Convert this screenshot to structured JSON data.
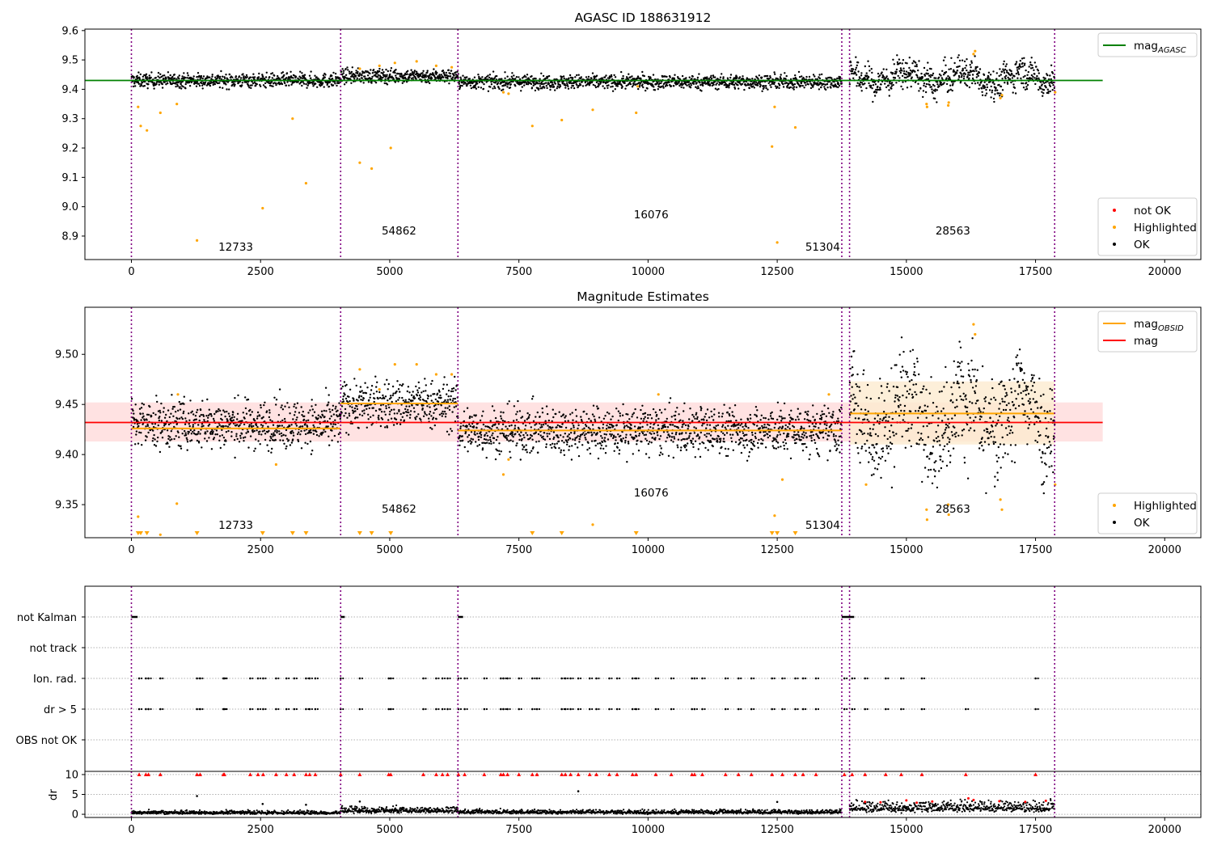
{
  "figure": {
    "background": "#ffffff",
    "colors": {
      "ok": "#000000",
      "highlighted": "#ffa500",
      "not_ok": "#ff0000",
      "mag_agasc_line": "#008000",
      "mag_obsid_line": "#ffa500",
      "mag_line": "#ff0000",
      "mag_band": "#ffd6d6",
      "obsid_band": "#fdebd0",
      "obsid_boundary": "#800080",
      "grid": "#b0b0b0"
    }
  },
  "chart_data": [
    {
      "type": "scatter",
      "title": "AGASC ID 188631912",
      "xlim": [
        -900,
        20700
      ],
      "ylim": [
        8.82,
        9.605
      ],
      "x_ticks": [
        0,
        2500,
        5000,
        7500,
        10000,
        12500,
        15000,
        17500,
        20000
      ],
      "x_tick_labels": [
        "0",
        "2500",
        "5000",
        "7500",
        "10000",
        "12500",
        "15000",
        "17500",
        "20000"
      ],
      "y_ticks": [
        8.9,
        9.0,
        9.1,
        9.2,
        9.3,
        9.4,
        9.5,
        9.6
      ],
      "y_tick_labels": [
        "8.9",
        "9.0",
        "9.1",
        "9.2",
        "9.3",
        "9.4",
        "9.5",
        "9.6"
      ],
      "obsid_boundaries": [
        0,
        4050,
        6320,
        13750,
        13900,
        17870
      ],
      "obsid_labels": [
        {
          "text": "12733",
          "x": 2020,
          "y": 8.85
        },
        {
          "text": "54862",
          "x": 5180,
          "y": 8.905
        },
        {
          "text": "16076",
          "x": 10060,
          "y": 8.96
        },
        {
          "text": "51304",
          "x": 13380,
          "y": 8.85
        },
        {
          "text": "28563",
          "x": 15900,
          "y": 8.905
        }
      ],
      "mag_agasc": {
        "value": 9.43,
        "x": [
          -900,
          18800
        ]
      },
      "segments": [
        {
          "x": [
            0,
            4050
          ],
          "center": 9.43,
          "spread": 0.012
        },
        {
          "x": [
            4050,
            6320
          ],
          "center": 9.445,
          "spread": 0.012
        },
        {
          "x": [
            6320,
            13750
          ],
          "center": 9.425,
          "spread": 0.012
        },
        {
          "x": [
            13900,
            17870
          ],
          "center": 9.44,
          "spread": 0.025
        }
      ],
      "highlighted_points": [
        [
          130,
          9.34
        ],
        [
          180,
          9.275
        ],
        [
          300,
          9.26
        ],
        [
          560,
          9.32
        ],
        [
          880,
          9.35
        ],
        [
          1270,
          8.885
        ],
        [
          2540,
          8.995
        ],
        [
          3120,
          9.3
        ],
        [
          3380,
          9.08
        ],
        [
          4420,
          9.15
        ],
        [
          4650,
          9.13
        ],
        [
          5020,
          9.2
        ],
        [
          7760,
          9.275
        ],
        [
          8330,
          9.295
        ],
        [
          8930,
          9.33
        ],
        [
          9770,
          9.32
        ],
        [
          12400,
          9.205
        ],
        [
          12500,
          8.878
        ],
        [
          12850,
          9.27
        ],
        [
          12450,
          9.34
        ],
        [
          15390,
          9.35
        ],
        [
          15400,
          9.34
        ],
        [
          15810,
          9.345
        ],
        [
          15820,
          9.355
        ],
        [
          16820,
          9.37
        ],
        [
          16850,
          9.38
        ],
        [
          16300,
          9.52
        ],
        [
          16330,
          9.53
        ],
        [
          17880,
          9.39
        ],
        [
          4420,
          9.47
        ],
        [
          4800,
          9.48
        ],
        [
          5100,
          9.49
        ],
        [
          5520,
          9.495
        ],
        [
          5900,
          9.48
        ],
        [
          6200,
          9.475
        ],
        [
          7200,
          9.39
        ],
        [
          7300,
          9.385
        ],
        [
          9800,
          9.41
        ]
      ],
      "legends": [
        {
          "entries": [
            {
              "label": "mag",
              "subscript": "AGASC",
              "marker": "line",
              "color": "#008000"
            }
          ],
          "placement": "top-right"
        },
        {
          "entries": [
            {
              "label": "not OK",
              "marker": "dot",
              "color": "#ff0000"
            },
            {
              "label": "Highlighted",
              "marker": "dot",
              "color": "#ffa500"
            },
            {
              "label": "OK",
              "marker": "dot",
              "color": "#000000"
            }
          ],
          "placement": "bottom-right"
        }
      ]
    },
    {
      "type": "scatter",
      "title": "Magnitude Estimates",
      "xlim": [
        -900,
        20700
      ],
      "ylim": [
        9.317,
        9.547
      ],
      "x_ticks": [
        0,
        2500,
        5000,
        7500,
        10000,
        12500,
        15000,
        17500,
        20000
      ],
      "x_tick_labels": [
        "0",
        "2500",
        "5000",
        "7500",
        "10000",
        "12500",
        "15000",
        "17500",
        "20000"
      ],
      "y_ticks": [
        9.35,
        9.4,
        9.45,
        9.5
      ],
      "y_tick_labels": [
        "9.35",
        "9.40",
        "9.45",
        "9.50"
      ],
      "obsid_boundaries": [
        0,
        4050,
        6320,
        13750,
        13900,
        17870
      ],
      "obsid_labels": [
        {
          "text": "12733",
          "x": 2020,
          "y": 9.326
        },
        {
          "text": "54862",
          "x": 5180,
          "y": 9.342
        },
        {
          "text": "16076",
          "x": 10060,
          "y": 9.358
        },
        {
          "text": "51304",
          "x": 13380,
          "y": 9.326
        },
        {
          "text": "28563",
          "x": 15900,
          "y": 9.342
        }
      ],
      "mag": {
        "value": 9.432,
        "band": [
          9.413,
          9.452
        ],
        "x": [
          -900,
          18800
        ]
      },
      "mag_obsid": [
        {
          "x": [
            0,
            4050
          ],
          "value": 9.426
        },
        {
          "x": [
            4050,
            6320
          ],
          "value": 9.451
        },
        {
          "x": [
            6320,
            13750
          ],
          "value": 9.424
        },
        {
          "x": [
            13900,
            17870
          ],
          "value": 9.441,
          "band": [
            9.41,
            9.473
          ]
        }
      ],
      "segments": [
        {
          "x": [
            0,
            4050
          ],
          "center": 9.43,
          "spread": 0.012
        },
        {
          "x": [
            4050,
            6320
          ],
          "center": 9.45,
          "spread": 0.012
        },
        {
          "x": [
            6320,
            13750
          ],
          "center": 9.424,
          "spread": 0.012
        },
        {
          "x": [
            13900,
            17870
          ],
          "center": 9.44,
          "spread": 0.025
        }
      ],
      "clipped_highlighted_x": [
        130,
        180,
        300,
        1270,
        2540,
        3120,
        3380,
        4420,
        4650,
        5020,
        7760,
        8330,
        9770,
        12400,
        12500,
        12850
      ],
      "highlighted_points": [
        [
          130,
          9.338
        ],
        [
          560,
          9.32
        ],
        [
          880,
          9.351
        ],
        [
          8930,
          9.33
        ],
        [
          12450,
          9.339
        ],
        [
          15390,
          9.345
        ],
        [
          15400,
          9.335
        ],
        [
          15810,
          9.35
        ],
        [
          15820,
          9.34
        ],
        [
          16820,
          9.355
        ],
        [
          16850,
          9.345
        ],
        [
          16300,
          9.53
        ],
        [
          16330,
          9.52
        ],
        [
          17880,
          9.37
        ],
        [
          14220,
          9.37
        ],
        [
          4420,
          9.485
        ],
        [
          4800,
          9.465
        ],
        [
          5100,
          9.49
        ],
        [
          5520,
          9.49
        ],
        [
          5900,
          9.48
        ],
        [
          6200,
          9.48
        ],
        [
          7200,
          9.38
        ],
        [
          7300,
          9.395
        ],
        [
          2800,
          9.39
        ],
        [
          900,
          9.46
        ],
        [
          12600,
          9.375
        ],
        [
          13500,
          9.46
        ],
        [
          10200,
          9.46
        ]
      ],
      "legends": [
        {
          "entries": [
            {
              "label": "mag",
              "subscript": "OBSID",
              "marker": "line",
              "color": "#ffa500"
            },
            {
              "label": "mag",
              "marker": "line",
              "color": "#ff0000"
            }
          ],
          "placement": "top-right"
        },
        {
          "entries": [
            {
              "label": "Highlighted",
              "marker": "dot",
              "color": "#ffa500"
            },
            {
              "label": "OK",
              "marker": "dot",
              "color": "#000000"
            }
          ],
          "placement": "bottom-right"
        }
      ]
    },
    {
      "type": "scatter",
      "title": "",
      "xlim": [
        -900,
        20700
      ],
      "categories": [
        "not Kalman",
        "not track",
        "Ion. rad.",
        "dr > 5",
        "OBS not OK"
      ],
      "obsid_boundaries": [
        0,
        4050,
        6320,
        13750,
        13900,
        17870
      ],
      "flag_events": {
        "not Kalman": [
          [
            0,
            120
          ],
          [
            4050,
            4130
          ],
          [
            6320,
            6420
          ],
          [
            13750,
            13990
          ]
        ],
        "not track": [],
        "Ion. rad.": [
          150,
          280,
          330,
          560,
          1270,
          1330,
          1780,
          1800,
          2300,
          2450,
          2550,
          2800,
          3000,
          3150,
          3380,
          3450,
          3560,
          4050,
          4420,
          4980,
          5020,
          5650,
          5900,
          6020,
          6120,
          6330,
          6450,
          6830,
          7150,
          7200,
          7280,
          7500,
          7760,
          7850,
          8330,
          8400,
          8500,
          8650,
          8870,
          9000,
          9250,
          9400,
          9700,
          9770,
          10150,
          10450,
          10850,
          10900,
          11050,
          11500,
          11750,
          12000,
          12400,
          12600,
          12850,
          13000,
          13250,
          13800,
          13950,
          14200,
          14600,
          14900,
          15300,
          17500
        ],
        "dr > 5": [
          150,
          280,
          330,
          560,
          1270,
          1330,
          1780,
          1800,
          2300,
          2450,
          2550,
          2800,
          3000,
          3150,
          3380,
          3450,
          3560,
          4050,
          4420,
          4980,
          5020,
          5650,
          5900,
          6020,
          6120,
          6330,
          6450,
          6830,
          7150,
          7200,
          7280,
          7500,
          7760,
          7850,
          8330,
          8400,
          8500,
          8650,
          8870,
          9000,
          9250,
          9400,
          9700,
          9770,
          10150,
          10450,
          10850,
          10900,
          11050,
          11500,
          11750,
          12000,
          12400,
          12600,
          12850,
          13000,
          13250,
          13800,
          13950,
          14200,
          14600,
          14900,
          15300,
          16150,
          17500
        ],
        "OBS not OK": []
      }
    },
    {
      "type": "scatter",
      "title": "",
      "xlim": [
        -900,
        20700
      ],
      "ylim": [
        -0.8,
        10.8
      ],
      "x_ticks": [
        0,
        2500,
        5000,
        7500,
        10000,
        12500,
        15000,
        17500,
        20000
      ],
      "x_tick_labels": [
        "0",
        "2500",
        "5000",
        "7500",
        "10000",
        "12500",
        "15000",
        "17500",
        "20000"
      ],
      "y_ticks": [
        0,
        5,
        10
      ],
      "y_tick_labels": [
        "0",
        "5",
        "10"
      ],
      "ylabel": "dr",
      "obsid_boundaries": [
        0,
        4050,
        6320,
        13750,
        13900,
        17870
      ],
      "clipped_value": 10,
      "segments": [
        {
          "x": [
            0,
            4050
          ],
          "center": 0.35,
          "spread": 0.3
        },
        {
          "x": [
            4050,
            6320
          ],
          "center": 0.9,
          "spread": 0.5
        },
        {
          "x": [
            6320,
            13750
          ],
          "center": 0.5,
          "spread": 0.35
        },
        {
          "x": [
            13900,
            17870
          ],
          "center": 1.6,
          "spread": 0.9
        }
      ],
      "outliers_ok": [
        [
          1270,
          4.6
        ],
        [
          4420,
          3.2
        ],
        [
          2540,
          2.6
        ],
        [
          3380,
          2.4
        ],
        [
          8650,
          5.8
        ],
        [
          12500,
          3.1
        ]
      ],
      "not_ok_points": [
        [
          14200,
          3.1
        ],
        [
          14500,
          3.0
        ],
        [
          15000,
          3.5
        ],
        [
          15500,
          3.2
        ],
        [
          16200,
          4.0
        ],
        [
          16300,
          3.6
        ],
        [
          16800,
          3.3
        ],
        [
          17300,
          3.1
        ],
        [
          17700,
          3.4
        ],
        [
          15200,
          2.9
        ]
      ]
    }
  ]
}
